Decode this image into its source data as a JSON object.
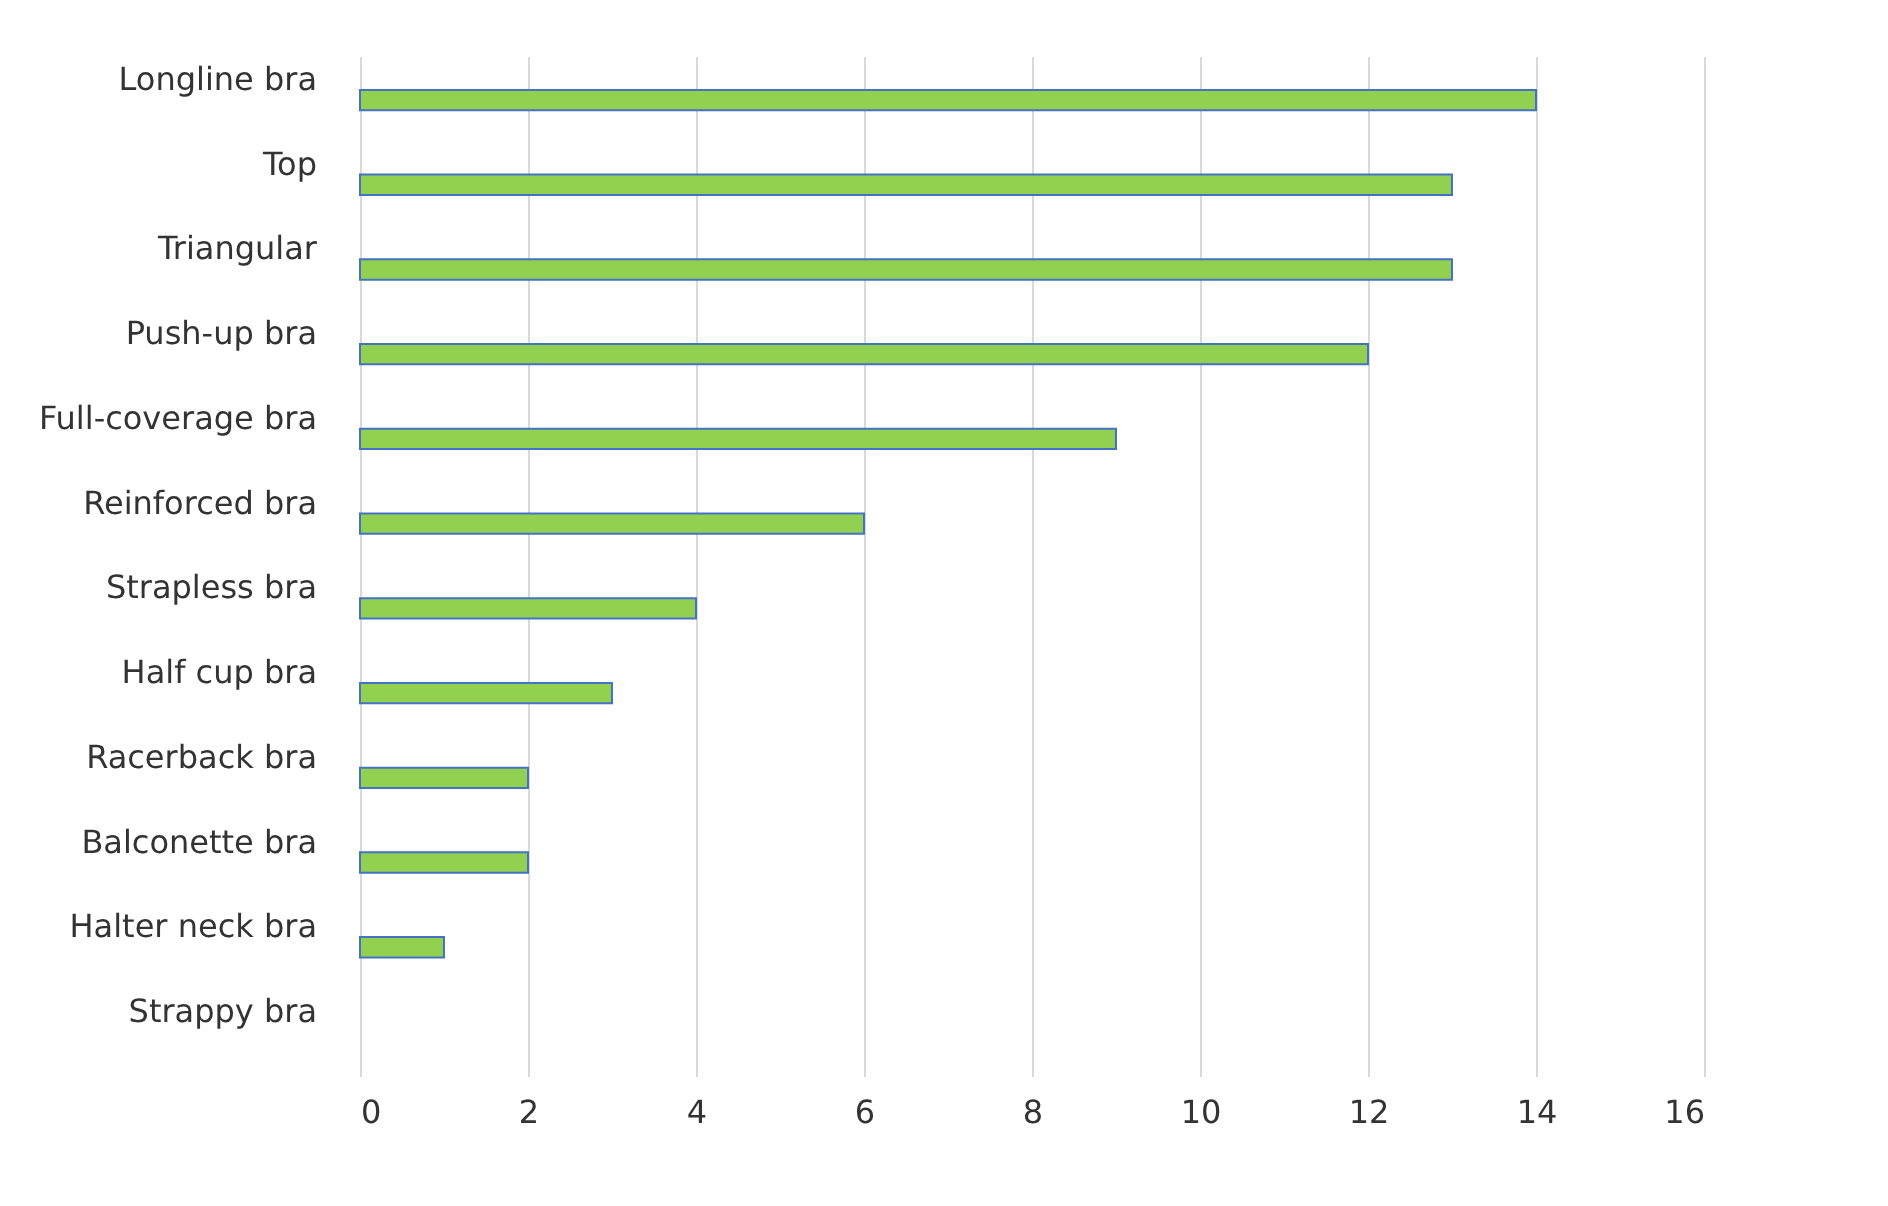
{
  "chart_data": {
    "type": "bar",
    "orientation": "horizontal",
    "categories": [
      "Longline bra",
      "Top",
      "Triangular",
      "Push-up bra",
      "Full-coverage bra",
      "Reinforced bra",
      "Strapless bra",
      "Half cup bra",
      "Racerback bra",
      "Balconette bra",
      "Halter neck bra",
      "Strappy bra"
    ],
    "values": [
      14,
      13,
      13,
      12,
      9,
      6,
      4,
      3,
      2,
      2,
      1,
      0
    ],
    "color": "#92d050",
    "xlim": [
      0,
      16
    ],
    "xticks": [
      0,
      2,
      4,
      6,
      8,
      10,
      12,
      14,
      16
    ],
    "grid": "x"
  }
}
